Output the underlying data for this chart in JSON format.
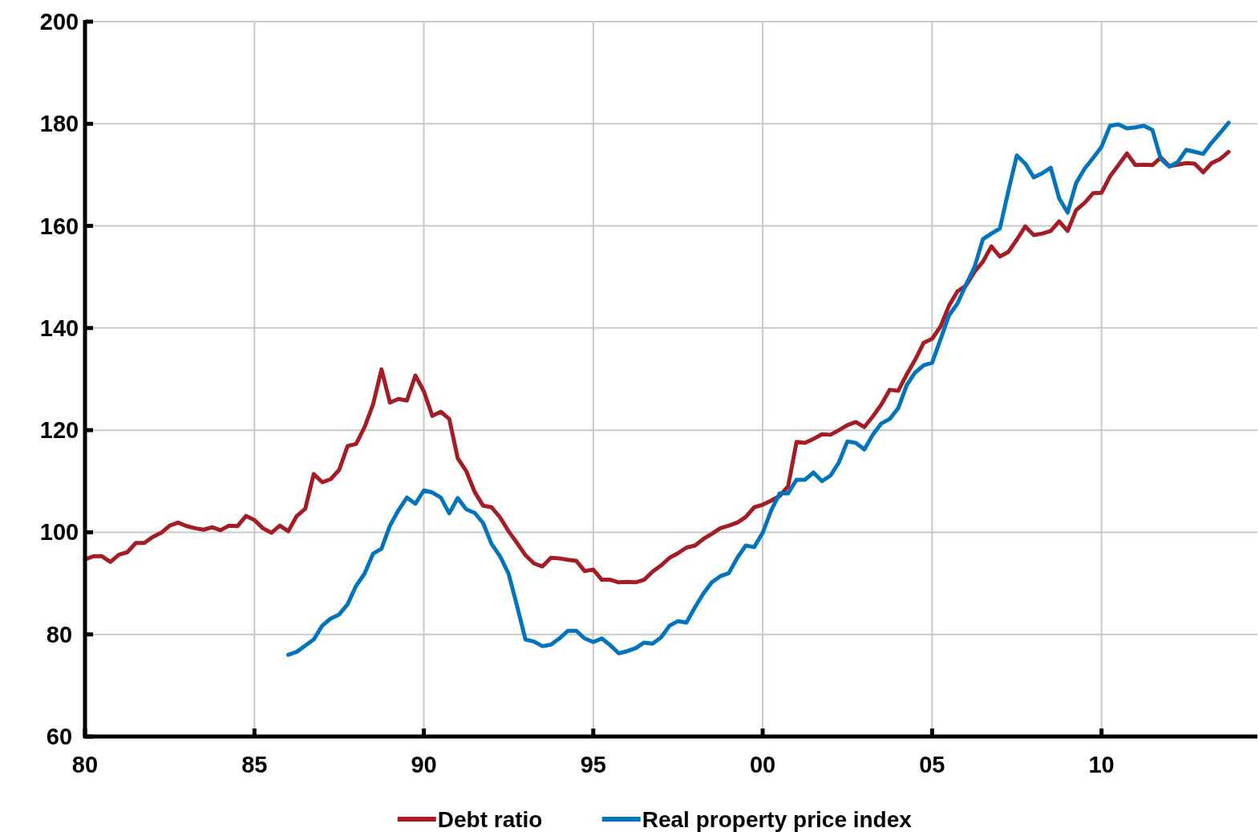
{
  "chart_data": {
    "type": "line",
    "xlim": [
      1980,
      2014.6
    ],
    "xticks": [
      {
        "value": 1980,
        "label": "80"
      },
      {
        "value": 1985,
        "label": "85"
      },
      {
        "value": 1990,
        "label": "90"
      },
      {
        "value": 1995,
        "label": "95"
      },
      {
        "value": 2000,
        "label": "00"
      },
      {
        "value": 2005,
        "label": "05"
      },
      {
        "value": 2010,
        "label": "10"
      }
    ],
    "ylim": [
      60,
      200
    ],
    "yticks": [
      60,
      80,
      100,
      120,
      140,
      160,
      180,
      200
    ],
    "grid": true,
    "legend": "bottom",
    "line_style": "solid",
    "marker": "none",
    "series": [
      {
        "name": "Debt ratio",
        "color": "#a51c24",
        "x": [
          1980,
          1980.25,
          1980.5,
          1980.75,
          1981,
          1981.25,
          1981.5,
          1981.75,
          1982,
          1982.25,
          1982.5,
          1982.75,
          1983,
          1983.25,
          1983.5,
          1983.75,
          1984,
          1984.25,
          1984.5,
          1984.75,
          1985,
          1985.25,
          1985.5,
          1985.75,
          1986,
          1986.25,
          1986.5,
          1986.75,
          1987,
          1987.25,
          1987.5,
          1987.75,
          1988,
          1988.25,
          1988.5,
          1988.75,
          1989,
          1989.25,
          1989.5,
          1989.75,
          1990,
          1990.25,
          1990.5,
          1990.75,
          1991,
          1991.25,
          1991.5,
          1991.75,
          1992,
          1992.25,
          1992.5,
          1992.75,
          1993,
          1993.25,
          1993.5,
          1993.75,
          1994,
          1994.25,
          1994.5,
          1994.75,
          1995,
          1995.25,
          1995.5,
          1995.75,
          1996,
          1996.25,
          1996.5,
          1996.75,
          1997,
          1997.25,
          1997.5,
          1997.75,
          1998,
          1998.25,
          1998.5,
          1998.75,
          1999,
          1999.25,
          1999.5,
          1999.75,
          2000,
          2000.25,
          2000.5,
          2000.75,
          2001,
          2001.25,
          2001.5,
          2001.75,
          2002,
          2002.25,
          2002.5,
          2002.75,
          2003,
          2003.25,
          2003.5,
          2003.75,
          2004,
          2004.25,
          2004.5,
          2004.75,
          2005,
          2005.25,
          2005.5,
          2005.75,
          2006,
          2006.25,
          2006.5,
          2006.75,
          2007,
          2007.25,
          2007.5,
          2007.75,
          2008,
          2008.25,
          2008.5,
          2008.75,
          2009,
          2009.25,
          2009.5,
          2009.75,
          2010,
          2010.25,
          2010.5,
          2010.75,
          2011,
          2011.25,
          2011.5,
          2011.75,
          2012,
          2012.25,
          2012.5,
          2012.75,
          2013,
          2013.25,
          2013.5,
          2013.75
        ],
        "values": [
          94.7,
          95.3,
          95.3,
          94.2,
          95.6,
          96.1,
          97.9,
          97.9,
          99.1,
          99.9,
          101.3,
          101.9,
          101.2,
          100.8,
          100.5,
          101.0,
          100.4,
          101.3,
          101.2,
          103.2,
          102.4,
          100.8,
          99.9,
          101.3,
          100.2,
          103.2,
          104.6,
          111.4,
          109.8,
          110.4,
          112.2,
          116.9,
          117.3,
          120.6,
          125.0,
          131.9,
          125.4,
          126.1,
          125.8,
          130.7,
          127.6,
          122.8,
          123.6,
          122.2,
          114.5,
          112.0,
          107.9,
          105.2,
          104.9,
          102.9,
          100.2,
          97.9,
          95.5,
          93.9,
          93.3,
          95.0,
          94.9,
          94.6,
          94.4,
          92.4,
          92.7,
          90.7,
          90.7,
          90.2,
          90.3,
          90.2,
          90.7,
          92.3,
          93.5,
          95.0,
          95.9,
          97.0,
          97.4,
          98.7,
          99.7,
          100.8,
          101.3,
          101.9,
          103.0,
          104.9,
          105.4,
          106.2,
          107.1,
          109.0,
          117.7,
          117.5,
          118.3,
          119.2,
          119.1,
          120.0,
          121.0,
          121.6,
          120.6,
          122.7,
          125.0,
          127.9,
          127.7,
          130.9,
          133.8,
          137.1,
          137.9,
          140.3,
          144.4,
          147.2,
          148.3,
          151.0,
          153.0,
          156.0,
          154.0,
          154.9,
          157.3,
          159.9,
          158.2,
          158.5,
          159.0,
          160.9,
          159.0,
          163.1,
          164.5,
          166.4,
          166.5,
          169.7,
          171.9,
          174.2,
          171.9,
          172.0,
          171.9,
          173.4,
          171.7,
          172.0,
          172.3,
          172.2,
          170.5,
          172.3,
          173.1,
          174.5
        ]
      },
      {
        "name": "Real property price index",
        "color": "#0274bd",
        "x": [
          1986,
          1986.25,
          1986.5,
          1986.75,
          1987,
          1987.25,
          1987.5,
          1987.75,
          1988,
          1988.25,
          1988.5,
          1988.75,
          1989,
          1989.25,
          1989.5,
          1989.75,
          1990,
          1990.25,
          1990.5,
          1990.75,
          1991,
          1991.25,
          1991.5,
          1991.75,
          1992,
          1992.25,
          1992.5,
          1992.75,
          1993,
          1993.25,
          1993.5,
          1993.75,
          1994,
          1994.25,
          1994.5,
          1994.75,
          1995,
          1995.25,
          1995.5,
          1995.75,
          1996,
          1996.25,
          1996.5,
          1996.75,
          1997,
          1997.25,
          1997.5,
          1997.75,
          1998,
          1998.25,
          1998.5,
          1998.75,
          1999,
          1999.25,
          1999.5,
          1999.75,
          2000,
          2000.25,
          2000.5,
          2000.75,
          2001,
          2001.25,
          2001.5,
          2001.75,
          2002,
          2002.25,
          2002.5,
          2002.75,
          2003,
          2003.25,
          2003.5,
          2003.75,
          2004,
          2004.25,
          2004.5,
          2004.75,
          2005,
          2005.25,
          2005.5,
          2005.75,
          2006,
          2006.25,
          2006.5,
          2006.75,
          2007,
          2007.25,
          2007.5,
          2007.75,
          2008,
          2008.25,
          2008.5,
          2008.75,
          2009,
          2009.25,
          2009.5,
          2009.75,
          2010,
          2010.25,
          2010.5,
          2010.75,
          2011,
          2011.25,
          2011.5,
          2011.75,
          2012,
          2012.25,
          2012.5,
          2012.75,
          2013,
          2013.25,
          2013.5,
          2013.75
        ],
        "values": [
          76.0,
          76.6,
          77.8,
          79.0,
          81.7,
          83.1,
          83.9,
          85.9,
          89.5,
          91.9,
          95.8,
          96.8,
          101.3,
          104.3,
          106.8,
          105.6,
          108.2,
          107.8,
          106.8,
          103.7,
          106.7,
          104.5,
          103.8,
          101.8,
          97.7,
          95.3,
          91.9,
          85.6,
          79.0,
          78.6,
          77.7,
          78.0,
          79.2,
          80.7,
          80.7,
          79.2,
          78.5,
          79.2,
          77.9,
          76.3,
          76.7,
          77.3,
          78.4,
          78.2,
          79.4,
          81.7,
          82.6,
          82.3,
          85.3,
          88.0,
          90.2,
          91.4,
          92.0,
          95.0,
          97.4,
          97.1,
          99.9,
          104.3,
          107.6,
          107.6,
          110.3,
          110.3,
          111.7,
          110.0,
          111.1,
          113.7,
          117.8,
          117.5,
          116.2,
          119.1,
          121.3,
          122.2,
          124.3,
          128.8,
          131.3,
          132.7,
          133.2,
          137.8,
          142.5,
          144.8,
          148.5,
          151.9,
          157.4,
          158.5,
          159.5,
          166.8,
          173.8,
          172.2,
          169.5,
          170.3,
          171.4,
          165.4,
          162.6,
          168.4,
          171.2,
          173.3,
          175.5,
          179.6,
          179.9,
          179.1,
          179.3,
          179.6,
          178.8,
          173.1,
          171.6,
          172.5,
          174.9,
          174.5,
          174.1,
          176.3,
          178.2,
          180.2
        ]
      }
    ]
  }
}
